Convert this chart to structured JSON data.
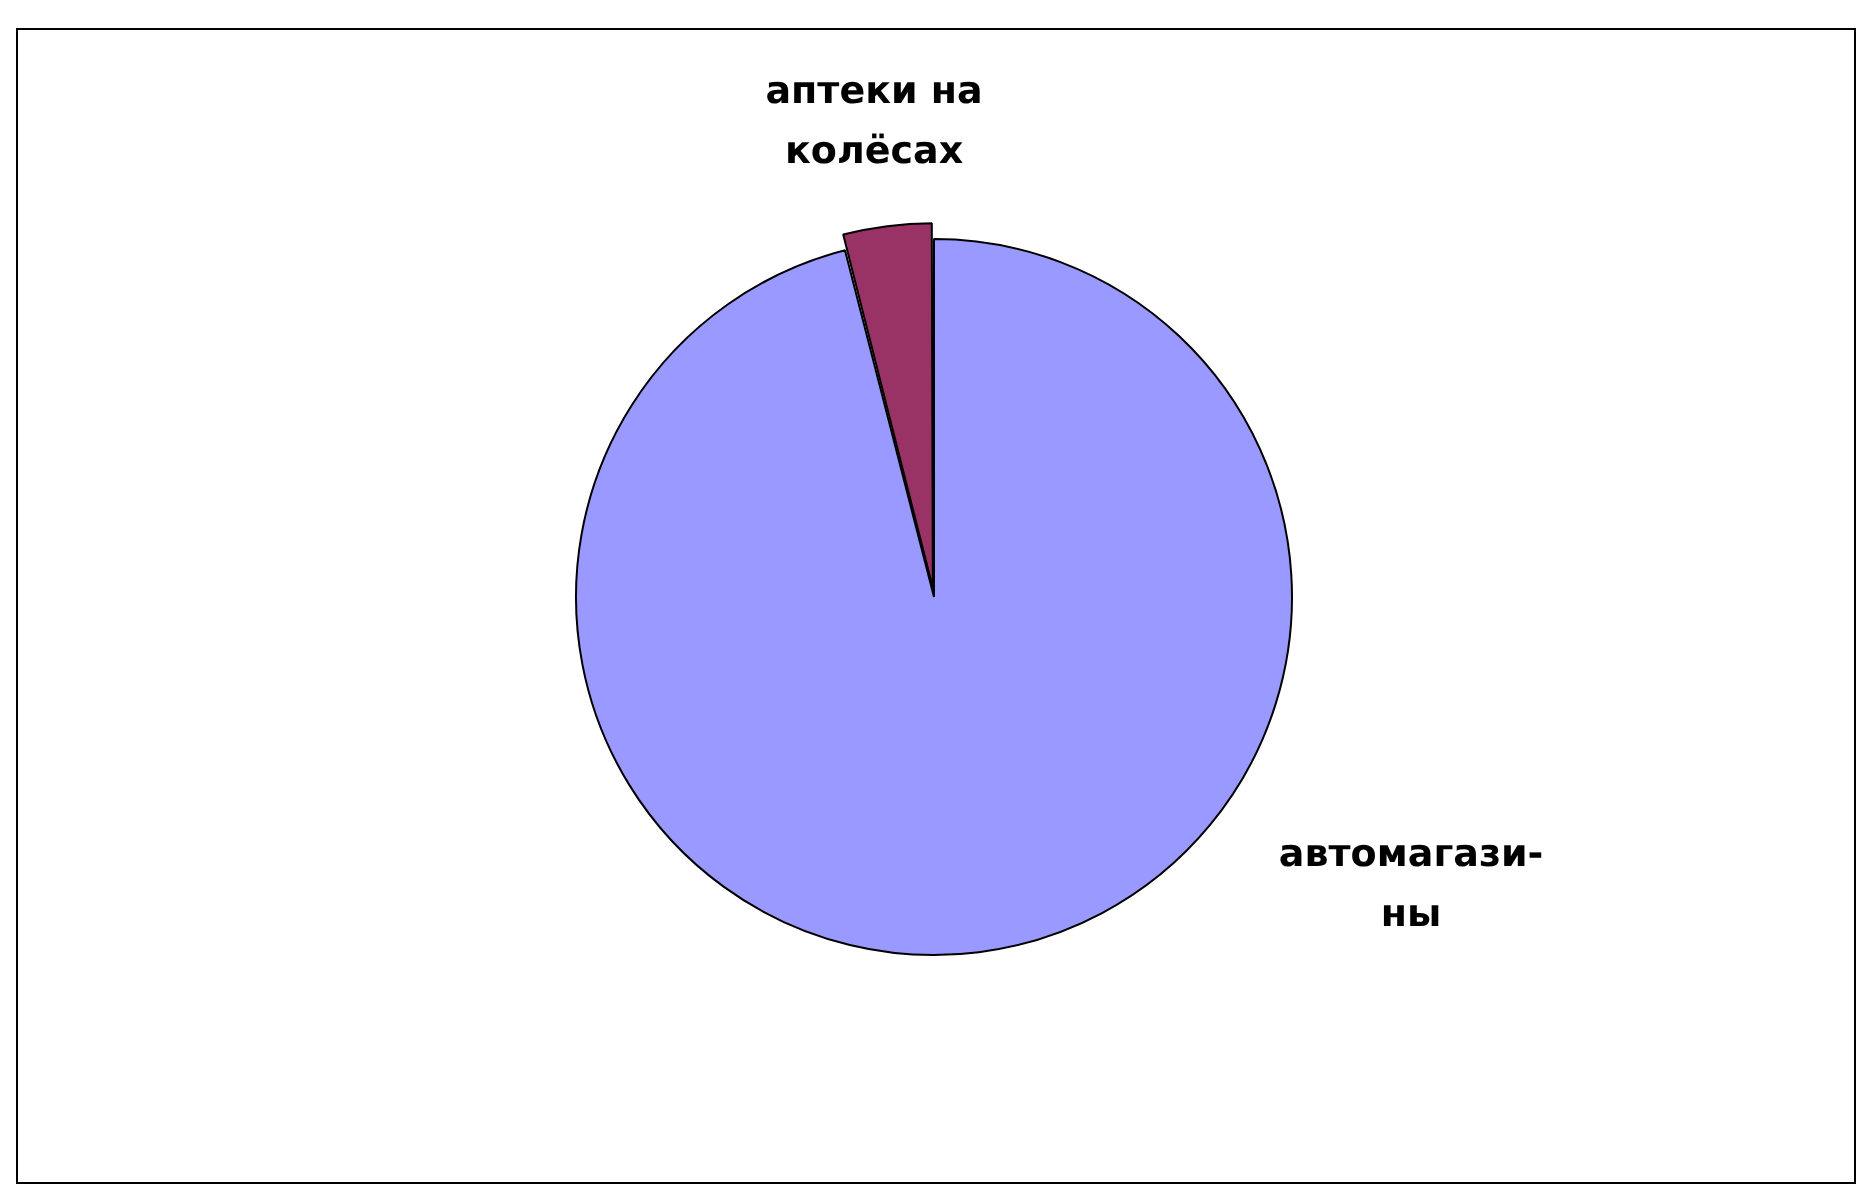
{
  "chart_data": {
    "type": "pie",
    "categories": [
      "аптеки на колёсах",
      "автомагази-ны"
    ],
    "values": [
      4,
      96
    ],
    "colors": [
      "#993366",
      "#9999ff"
    ],
    "legend": false
  }
}
